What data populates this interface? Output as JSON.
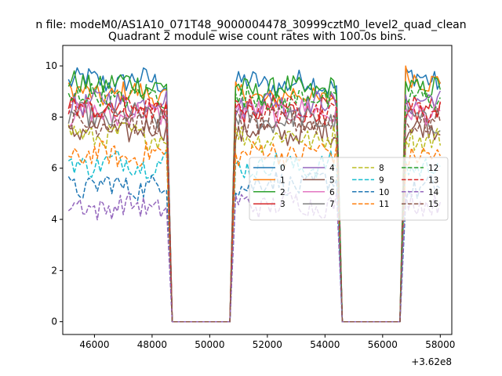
{
  "figure": {
    "suptitle": "n file: modeM0/AS1A10_071T48_9000004478_30999cztM0_level2_quad_clean",
    "title": "Quadrant 2 module wise count rates with 100.0s bins.",
    "offset_label": "+3.62e8"
  },
  "chart_data": {
    "type": "line",
    "title": "Quadrant 2 module wise count rates with 100.0s bins.",
    "xlabel": "",
    "ylabel": "",
    "x_offset": 362000000,
    "xlim": [
      44900,
      58400
    ],
    "ylim": [
      -0.5,
      10.8
    ],
    "xticks": [
      46000,
      48000,
      50000,
      52000,
      54000,
      56000,
      58000
    ],
    "yticks": [
      0,
      2,
      4,
      6,
      8,
      10
    ],
    "grid": false,
    "legend_position": "center-right",
    "legend_columns": 4,
    "segments": [
      {
        "start": 45100,
        "end": 48500,
        "drop_end": 48700
      },
      {
        "start": 50900,
        "end": 54400,
        "drop_start": 50700,
        "drop_end": 54600
      },
      {
        "start": 56800,
        "end": 58000,
        "drop_start": 56600
      }
    ],
    "zero_ranges": [
      [
        48700,
        50700
      ],
      [
        54600,
        56600
      ]
    ],
    "series": [
      {
        "name": "0",
        "color": "#1f77b4",
        "dash": "solid",
        "levels": [
          9.4,
          9.3,
          9.5
        ]
      },
      {
        "name": "1",
        "color": "#ff7f0e",
        "dash": "solid",
        "levels": [
          8.9,
          8.8,
          9.5
        ]
      },
      {
        "name": "2",
        "color": "#2ca02c",
        "dash": "solid",
        "levels": [
          9.3,
          9.1,
          9.2
        ]
      },
      {
        "name": "3",
        "color": "#d62728",
        "dash": "solid",
        "levels": [
          8.4,
          8.3,
          8.3
        ]
      },
      {
        "name": "4",
        "color": "#9467bd",
        "dash": "solid",
        "levels": [
          8.6,
          8.5,
          8.6
        ]
      },
      {
        "name": "5",
        "color": "#8c564b",
        "dash": "solid",
        "levels": [
          7.5,
          7.4,
          7.5
        ]
      },
      {
        "name": "6",
        "color": "#e377c2",
        "dash": "solid",
        "levels": [
          8.1,
          8.2,
          8.1
        ]
      },
      {
        "name": "7",
        "color": "#7f7f7f",
        "dash": "solid",
        "levels": [
          8.0,
          7.9,
          7.9
        ]
      },
      {
        "name": "8",
        "color": "#bcbd22",
        "dash": "dashed",
        "levels": [
          7.3,
          7.2,
          7.2
        ]
      },
      {
        "name": "9",
        "color": "#17becf",
        "dash": "dashed",
        "levels": [
          6.2,
          6.1,
          6.1
        ]
      },
      {
        "name": "10",
        "color": "#1f77b4",
        "dash": "dashed",
        "levels": [
          5.3,
          5.4,
          5.2
        ]
      },
      {
        "name": "11",
        "color": "#ff7f0e",
        "dash": "dashed",
        "levels": [
          6.5,
          6.6,
          6.4
        ]
      },
      {
        "name": "12",
        "color": "#2ca02c",
        "dash": "dashed",
        "levels": [
          8.8,
          8.7,
          8.7
        ]
      },
      {
        "name": "13",
        "color": "#d62728",
        "dash": "dashed",
        "levels": [
          8.3,
          8.3,
          8.3
        ]
      },
      {
        "name": "14",
        "color": "#9467bd",
        "dash": "dashed",
        "levels": [
          4.5,
          4.6,
          4.7
        ]
      },
      {
        "name": "15",
        "color": "#8c564b",
        "dash": "dashed",
        "levels": [
          7.8,
          7.8,
          7.8
        ]
      }
    ]
  }
}
